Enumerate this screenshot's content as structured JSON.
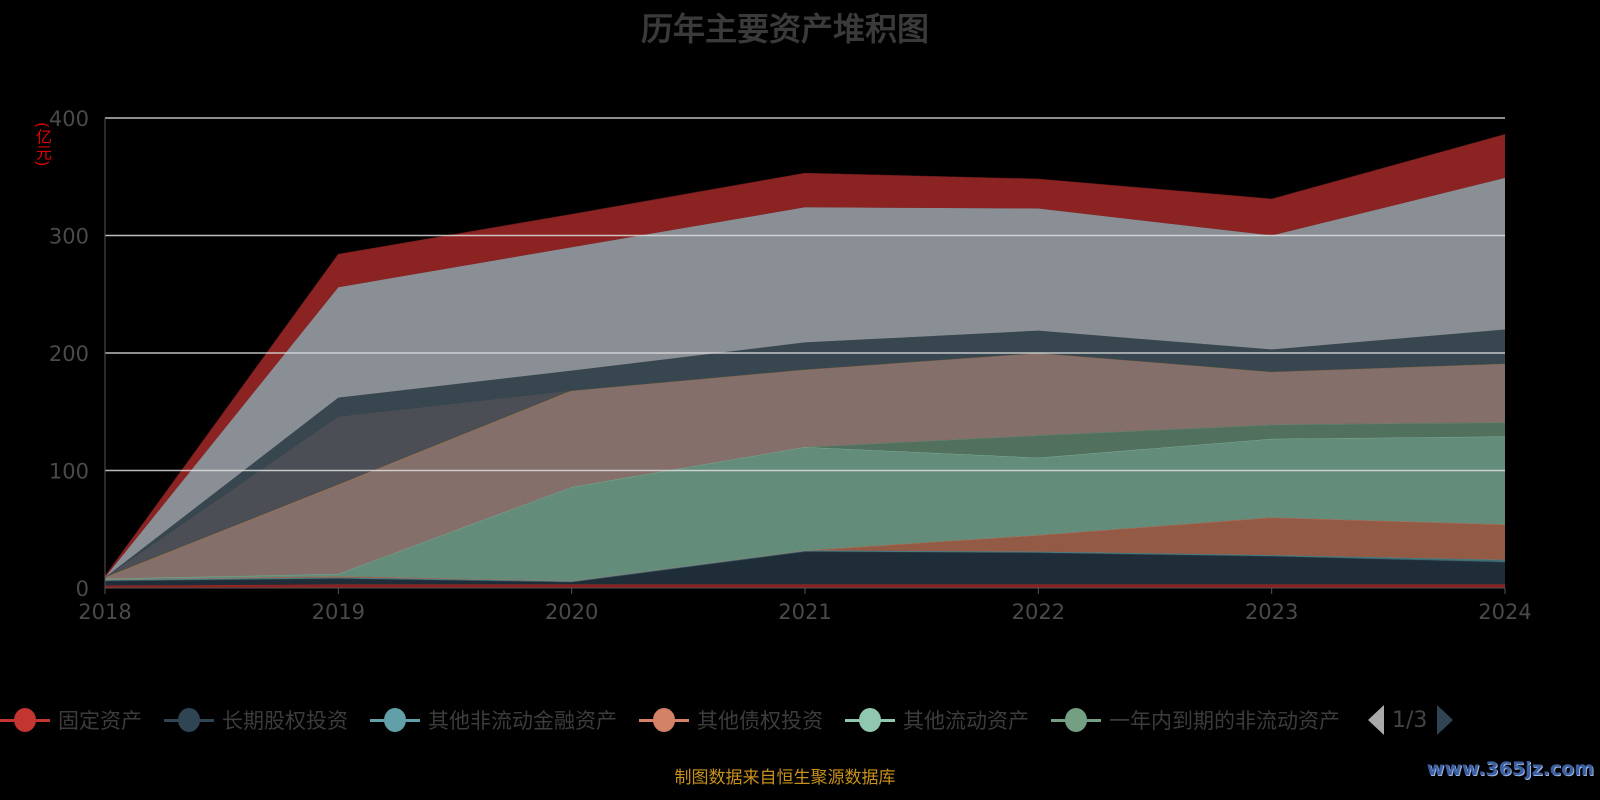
{
  "chart_data": {
    "type": "area",
    "stacked": true,
    "title": "历年主要资产堆积图",
    "ylabel": "(亿元)",
    "xlabel": "",
    "ylim": [
      0,
      400
    ],
    "yticks": [
      "0",
      "100",
      "200",
      "300",
      "400"
    ],
    "categories": [
      "2018",
      "2019",
      "2020",
      "2021",
      "2022",
      "2023",
      "2024"
    ],
    "grid": true,
    "legend_position": "bottom",
    "series": [
      {
        "name": "固定资产",
        "color": "#c23531",
        "fill": "#8b2020",
        "values": [
          2,
          3,
          3,
          3,
          3,
          3,
          3
        ]
      },
      {
        "name": "长期股权投资",
        "color": "#2f4554",
        "fill": "#1f2d38",
        "values": [
          4,
          5,
          2,
          28,
          27,
          24,
          19
        ]
      },
      {
        "name": "其他非流动金融资产",
        "color": "#61a0a8",
        "fill": "#3f6b72",
        "values": [
          1,
          1,
          1,
          1,
          1,
          1,
          2
        ]
      },
      {
        "name": "其他债权投资",
        "color": "#d48265",
        "fill": "#935a45",
        "values": [
          0,
          1,
          0,
          0,
          14,
          32,
          30
        ]
      },
      {
        "name": "其他流动资产",
        "color": "#91c7ae",
        "fill": "#648c7b",
        "values": [
          1,
          2,
          80,
          88,
          66,
          67,
          75
        ]
      },
      {
        "name": "一年内到期的非流动资产",
        "color": "#749f83",
        "fill": "#52705e",
        "values": [
          0,
          0,
          0,
          0,
          19,
          12,
          12
        ]
      },
      {
        "name": "",
        "color": "#ca8622",
        "fill": "#846f6a",
        "values": [
          1,
          76,
          82,
          66,
          70,
          45,
          50
        ]
      },
      {
        "name": "",
        "color": "#4b4f55",
        "fill": "#4b4f55",
        "values": [
          0,
          58,
          0,
          0,
          0,
          0,
          0
        ]
      },
      {
        "name": "",
        "color": "#38474f",
        "fill": "#38474f",
        "values": [
          0,
          16,
          17,
          23,
          19,
          19,
          29
        ]
      },
      {
        "name": "",
        "color": "#8a8f96",
        "fill": "#8a8f96",
        "values": [
          0,
          94,
          105,
          115,
          104,
          97,
          129
        ]
      },
      {
        "name": "",
        "color": "#8b2323",
        "fill": "#8b2323",
        "values": [
          1,
          28,
          28,
          29,
          25,
          31,
          37
        ]
      }
    ]
  },
  "legend": {
    "page": "1/3"
  },
  "source": "制图数据来自恒生聚源数据库",
  "watermark": "www.365jz.com"
}
